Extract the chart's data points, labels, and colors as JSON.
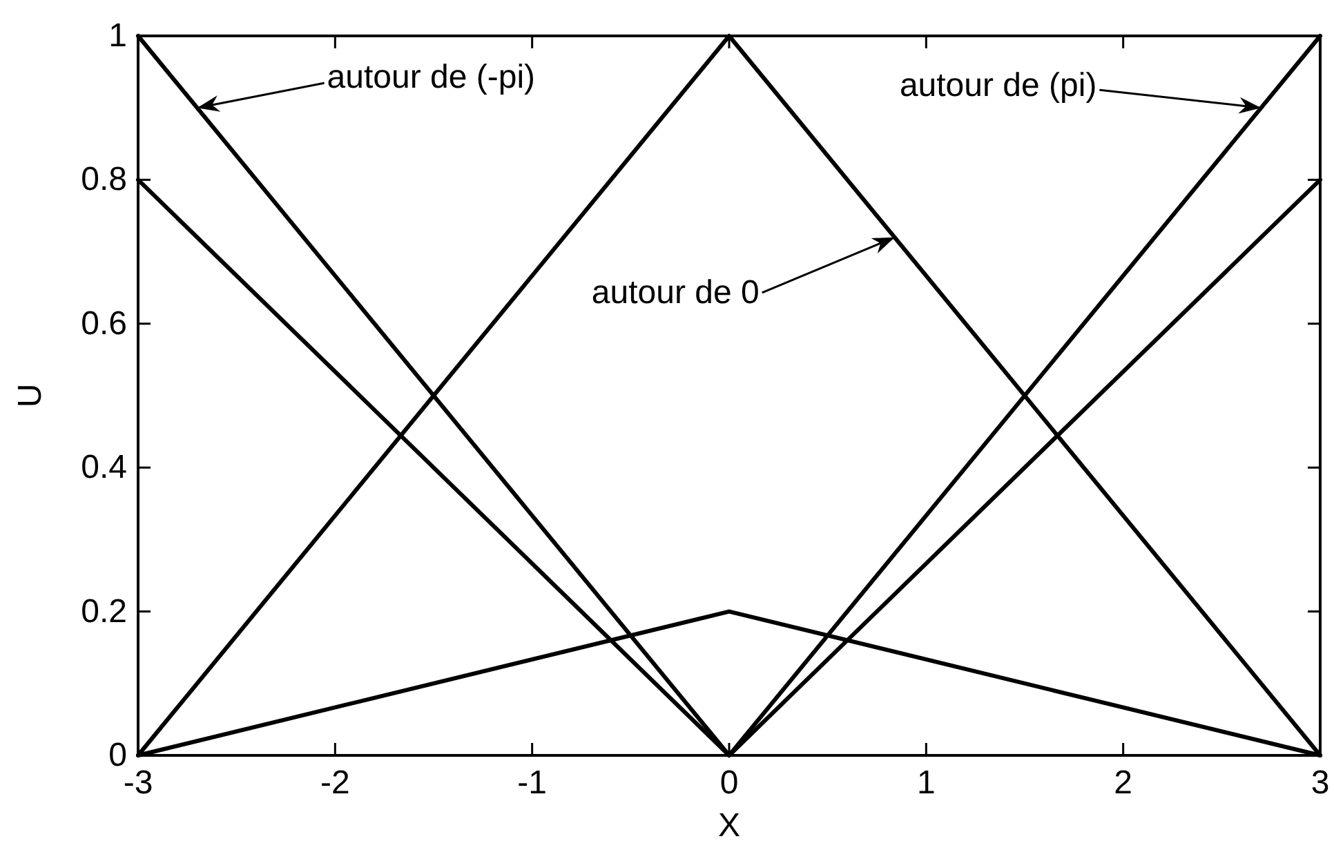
{
  "chart_data": {
    "type": "line",
    "xlabel": "X",
    "ylabel": "U",
    "x": [
      -3,
      0,
      3
    ],
    "series": [
      {
        "color": "#000000",
        "values": [
          0,
          1,
          0
        ]
      },
      {
        "color": "#000000",
        "values": [
          1,
          0,
          1
        ]
      },
      {
        "color": "#000000",
        "values": [
          0.8,
          0,
          0.8
        ]
      },
      {
        "color": "#000000",
        "values": [
          0,
          0.2,
          0
        ]
      }
    ],
    "xlim": [
      -3,
      3
    ],
    "ylim": [
      0,
      1
    ],
    "xticks": [
      -3,
      -2,
      -1,
      0,
      1,
      2,
      3
    ],
    "yticks": [
      0,
      0.2,
      0.4,
      0.6,
      0.8,
      1
    ],
    "annotations": [
      {
        "text": "autour de (-pi)",
        "x": -2.7,
        "y": 0.9
      },
      {
        "text": "autour de (pi)",
        "x": 2.7,
        "y": 0.9
      },
      {
        "text": "autour de 0",
        "x": 0.84,
        "y": 0.72
      }
    ]
  }
}
